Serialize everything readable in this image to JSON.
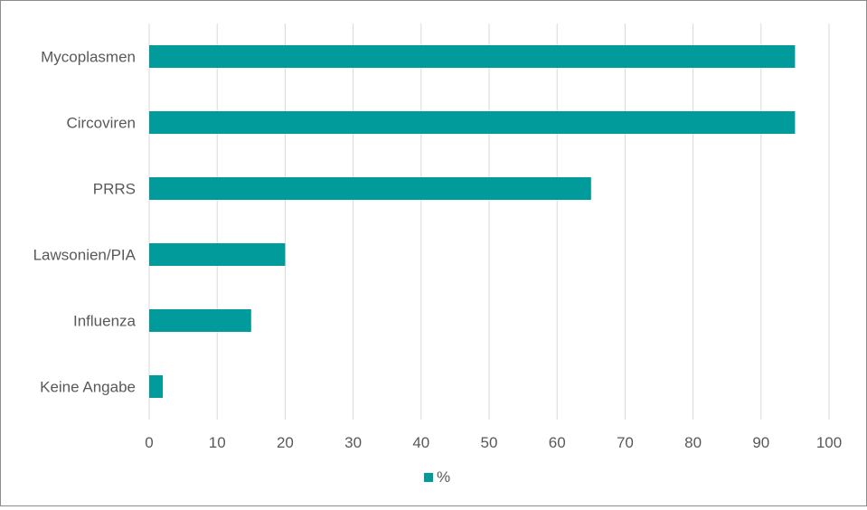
{
  "chart_data": {
    "type": "bar",
    "orientation": "horizontal",
    "categories": [
      "Mycoplasmen",
      "Circoviren",
      "PRRS",
      "Lawsonien/PIA",
      "Influenza",
      "Keine Angabe"
    ],
    "series": [
      {
        "name": "%",
        "values": [
          95,
          95,
          65,
          20,
          15,
          2
        ],
        "color": "#009b9a"
      }
    ],
    "xlim": [
      0,
      100
    ],
    "x_ticks": [
      0,
      10,
      20,
      30,
      40,
      50,
      60,
      70,
      80,
      90,
      100
    ],
    "grid": "vertical",
    "legend_position": "bottom-center"
  }
}
